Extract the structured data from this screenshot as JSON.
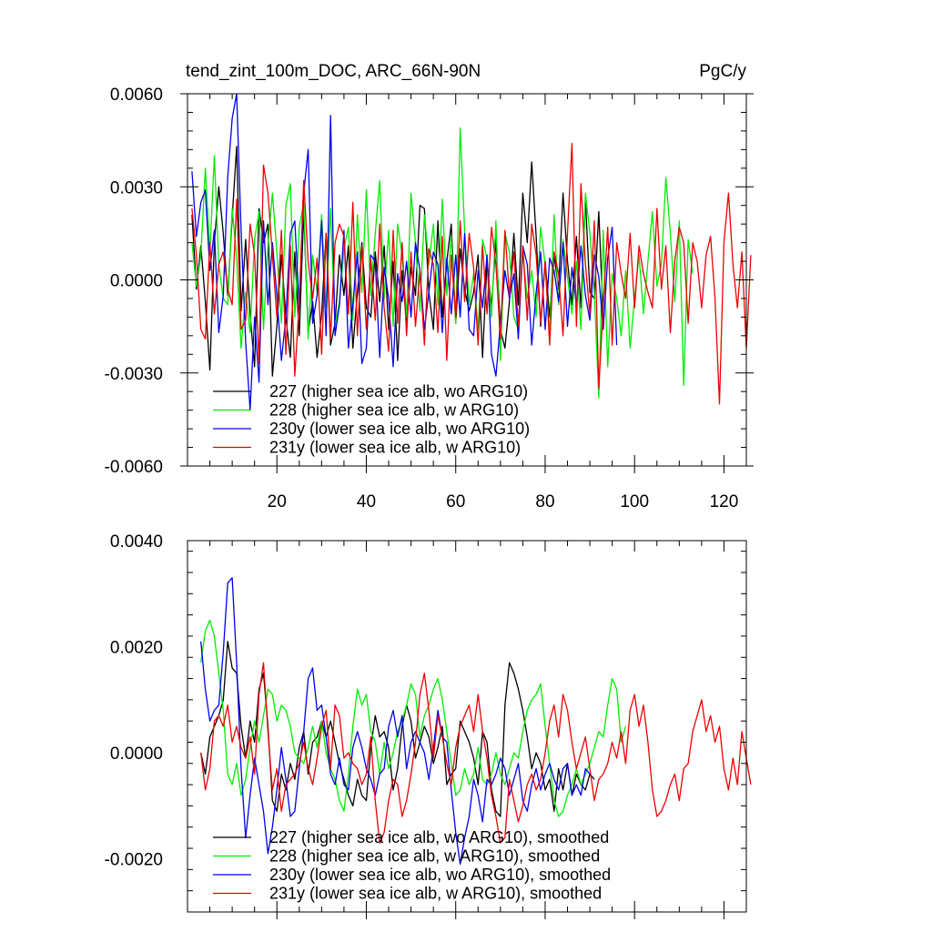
{
  "chart_data": [
    {
      "type": "line",
      "title": "tend_zint_100m_DOC, ARC_66N-90N",
      "units": "PgC/y",
      "xlabel": "",
      "ylabel": "",
      "xlim": [
        0,
        125
      ],
      "ylim": [
        -0.006,
        0.006
      ],
      "xticks": [
        20,
        40,
        60,
        80,
        100,
        120
      ],
      "yticks": [
        -0.006,
        -0.003,
        0.0,
        0.003,
        0.006
      ],
      "ytick_labels": [
        "-0.0060",
        "-0.0030",
        "0.0000",
        "0.0030",
        "0.0060"
      ],
      "grid": false,
      "legend_position": "bottom-left",
      "series": [
        {
          "name": "227 (higher sea ice alb, wo ARG10)",
          "color": "#000000",
          "x_start": 1,
          "values": [
            0.0021,
            -0.0003,
            0.0011,
            -0.0007,
            -0.0029,
            0.0012,
            0.003,
            0.0015,
            -0.0005,
            0.002,
            0.0043,
            -0.001,
            0.0013,
            -0.0011,
            -0.0028,
            0.0023,
            0.0012,
            0.0018,
            -0.0031,
            -0.0015,
            0.0008,
            -0.0012,
            -0.0025,
            0.0009,
            -0.0018,
            0.0022,
            -0.0017,
            -0.0007,
            -0.0025,
            -0.0011,
            0.0015,
            -0.0021,
            -0.0014,
            0.0008,
            -0.0005,
            0.0011,
            -0.0022,
            -0.0004,
            0.0012,
            -0.0009,
            -0.0012,
            0.0009,
            -0.0007,
            0.0011,
            -0.0016,
            0.0006,
            -0.0026,
            0.0003,
            -0.0014,
            0.0004,
            -0.0005,
            0.0024,
            0.0023,
            -0.0004,
            -0.0016,
            0.0019,
            -0.0012,
            0.0006,
            0.0018,
            -0.0014,
            0.001,
            -0.0003,
            -0.001,
            -0.0004,
            0.0008,
            -0.0025,
            0.0006,
            -0.0009,
            0.0013,
            -0.0016,
            -0.0022,
            -0.0007,
            0.0015,
            -0.0008,
            0.0028,
            0.0012,
            0.0038,
            0.0014,
            -0.0015,
            0.0006,
            -0.0012,
            0.0008,
            -0.0003,
            0.0028,
            0.0006,
            -0.0008,
            0.0014,
            -0.0009,
            0.0026,
            -0.0004,
            -0.0006,
            0.0022,
            -0.0013
          ]
        },
        {
          "name": "228 (higher sea ice alb, w ARG10)",
          "color": "#00ee00",
          "x_start": 1,
          "values": [
            0.0012,
            -0.0002,
            0.0008,
            0.0036,
            0.0009,
            0.004,
            0.0005,
            -0.0006,
            -0.0008,
            0.0023,
            0.0007,
            -0.0022,
            -0.0004,
            -0.0017,
            0.0013,
            0.0022,
            -0.0016,
            0.0011,
            0.0028,
            0.0009,
            -0.0014,
            0.0024,
            0.0031,
            -0.0012,
            0.0017,
            0.0025,
            -0.0019,
            0.0008,
            -0.0004,
            0.0021,
            -0.0009,
            0.0023,
            -0.0015,
            -0.0007,
            0.001,
            0.0017,
            -0.0013,
            0.0021,
            -0.0004,
            0.0029,
            -0.0005,
            0.0015,
            0.0032,
            -0.0006,
            0.0016,
            -0.0015,
            0.0018,
            0.0008,
            -0.0012,
            0.0028,
            0.0012,
            -0.001,
            0.0021,
            0.0005,
            0.0018,
            -0.0008,
            0.0026,
            -0.0005,
            0.0014,
            -0.0014,
            0.0049,
            0.0016,
            -0.0008,
            0.0002,
            -0.0016,
            0.0013,
            0.0007,
            -0.0012,
            0.0019,
            -0.0026,
            0.0015,
            0.0009,
            -0.0012,
            -0.0016,
            0.0009,
            -0.0006,
            0.0003,
            -0.0012,
            0.0017,
            0.0005,
            -0.0018,
            0.0021,
            -0.0008,
            0.0013,
            0.0001,
            -0.0011,
            0.0006,
            -0.0016,
            0.0028,
            0.0015,
            -0.0004,
            -0.0038,
            0.0016,
            -0.0028,
            0.0002,
            -0.0006,
            -0.0018,
            0.0003,
            -0.0022,
            -0.0006,
            0.0008,
            -0.0011,
            0.0006,
            0.0022,
            -0.0002,
            0.0005,
            0.0033,
            0.0015,
            -0.0007,
            0.0019,
            -0.0034,
            0.0013,
            0.0002
          ]
        },
        {
          "name": "230y (lower sea ice alb, wo ARG10)",
          "color": "#0000ee",
          "x_start": 1,
          "values": [
            0.0035,
            0.0014,
            0.0025,
            0.0029,
            0.0003,
            0.0016,
            -0.0017,
            -0.0005,
            0.0033,
            0.0052,
            0.006,
            0.0016,
            -0.002,
            -0.0042,
            -0.0012,
            -0.0033,
            0.0019,
            -0.0008,
            0.0012,
            -0.0005,
            -0.0026,
            -0.0012,
            0.0015,
            0.0019,
            -0.0009,
            0.0028,
            0.0042,
            -0.0014,
            -0.0005,
            0.0019,
            -0.0018,
            0.0053,
            -0.0018,
            -0.0008,
            0.0016,
            -0.0022,
            -0.0008,
            0.0009,
            -0.0027,
            -0.0022,
            0.0008,
            0.0006,
            -0.0025,
            0.0004,
            -0.0006,
            -0.0028,
            0.0002,
            -0.0007,
            0.0006,
            -0.0012,
            0.0012,
            0.0003,
            -0.0016,
            -0.0004,
            0.0009,
            0.0005,
            -0.0017,
            0.0007,
            -0.0011,
            0.0008,
            -0.0012,
            0.0015,
            -0.0016,
            -0.0018,
            0.0003,
            -0.0009,
            0.0008,
            -0.0024,
            -0.0031,
            -0.0014,
            0.0003,
            -0.0006,
            0.0002,
            -0.0019,
            0.0011,
            0.0005,
            -0.0021,
            -0.0004,
            0.0009,
            -0.0016,
            0.0007,
            0.0003,
            -0.0007,
            0.0012,
            -0.0015,
            0.0004,
            -0.0008,
            0.0011,
            -0.0005,
            -0.0013,
            0.0008,
            0.0001,
            -0.0016,
            0.0007,
            0.0017,
            -0.0021
          ]
        },
        {
          "name": "231y (lower sea ice alb, w ARG10)",
          "color": "#ee0000",
          "x_start": 1,
          "values": [
            0.0023,
            0.0008,
            -0.0016,
            -0.0019,
            0.0012,
            -0.0011,
            0.0005,
            0.0009,
            -0.0003,
            -0.0008,
            0.0026,
            -0.0016,
            -0.0013,
            0.0018,
            0.0008,
            -0.0027,
            0.0037,
            0.0028,
            0.0008,
            -0.0012,
            0.0016,
            -0.0024,
            0.0011,
            -0.0031,
            -0.0007,
            0.0032,
            0.0006,
            -0.0006,
            0.0007,
            -0.0024,
            0.0015,
            -0.0019,
            0.0012,
            0.0018,
            0.0014,
            -0.0011,
            0.0025,
            -0.0018,
            0.0011,
            -0.0016,
            0.0007,
            -0.0013,
            0.0018,
            -0.0009,
            -0.0023,
            0.0016,
            -0.0014,
            0.0012,
            -0.0018,
            0.0009,
            -0.0015,
            0.0003,
            -0.0021,
            0.001,
            0.0005,
            -0.0017,
            0.0014,
            -0.0026,
            0.0008,
            -0.0012,
            0.0019,
            -0.0007,
            0.0015,
            0.0004,
            -0.0021,
            0.0011,
            -0.0011,
            0.0017,
            0.0005,
            -0.0019,
            0.0016,
            -0.0005,
            0.0009,
            -0.0015,
            0.0011,
            -0.0013,
            0.0018,
            0.0008,
            -0.0014,
            0.0006,
            -0.0021,
            0.0009,
            0.0002,
            -0.0018,
            0.0015,
            0.0044,
            -0.0015,
            0.0031,
            0.0005,
            -0.0011,
            0.0019,
            -0.0035,
            -0.0008,
            0.0017,
            -0.0021,
            0.0012,
            0.0002,
            -0.0006,
            0.0015,
            -0.0009,
            0.0011,
            0.0002,
            -0.0004,
            -0.0009,
            0.0023,
            -0.0003,
            0.0011,
            -0.0017,
            0.0006,
            0.0017,
            0.0012,
            -0.0014,
            0.0012,
            0.0006,
            -0.0009,
            0.0008,
            0.0014,
            -0.0006,
            -0.004,
            0.0012,
            0.0028,
            0.0005,
            -0.0009,
            0.0009,
            -0.0022,
            0.0008
          ]
        }
      ]
    },
    {
      "type": "line",
      "title": "",
      "xlabel": "",
      "ylabel": "",
      "xlim": [
        0,
        125
      ],
      "ylim": [
        -0.003,
        0.004
      ],
      "xticks": [
        20,
        40,
        60,
        80,
        100,
        120
      ],
      "yticks": [
        -0.002,
        0.0,
        0.002,
        0.004
      ],
      "ytick_labels": [
        "-0.0020",
        "0.0000",
        "0.0020",
        "0.0040"
      ],
      "grid": false,
      "legend_position": "bottom-left",
      "series": [
        {
          "name": "227 (higher sea ice alb, wo ARG10), smoothed",
          "color": "#000000",
          "x_start": 3,
          "values": [
            0.0,
            -0.0004,
            0.0003,
            0.0005,
            0.0007,
            0.001,
            0.0021,
            0.0016,
            0.0015,
            0.0005,
            -0.0001,
            0.0006,
            0.0002,
            0.0012,
            0.0015,
            0.0005,
            -0.0009,
            -0.0011,
            -0.0004,
            -0.0007,
            -0.0002,
            -0.0005,
            0.0001,
            0.0004,
            -0.0004,
            0.0002,
            0.0003,
            0.0006,
            0.0003,
            0.0006,
            0.0002,
            -0.0002,
            -0.0005,
            -0.0008,
            -0.001,
            -0.0005,
            -0.0008,
            -0.0009,
            0.0001,
            0.0007,
            0.0003,
            0.0004,
            0.0001,
            -0.0007,
            -0.0003,
            0.0005,
            0.0009,
            0.0006,
            -0.0001,
            0.0002,
            0.0005,
            0.0003,
            -0.0002,
            0.0001,
            0.0005,
            -0.0006,
            -0.0004,
            -0.0003,
            0.0006,
            0.0004,
            0.0002,
            -0.0001,
            -0.0006,
            0.0004,
            0.0002,
            -0.0007,
            -0.0011,
            -0.0012,
            0.0009,
            0.0017,
            0.0015,
            0.0012,
            0.0008,
            0.0003,
            -0.0003,
            0.0,
            -0.0002,
            -0.0007,
            -0.0005,
            -0.0011,
            -0.0003,
            -0.0007,
            -0.0002,
            -0.0008,
            -0.0004,
            -0.0006,
            -0.0007,
            -0.0004,
            -0.0005
          ]
        },
        {
          "name": "228 (higher sea ice alb, w ARG10), smoothed",
          "color": "#00ee00",
          "x_start": 3,
          "values": [
            0.0017,
            0.0023,
            0.0025,
            0.0022,
            0.0015,
            0.0008,
            -0.0004,
            -0.0006,
            -0.0002,
            -0.0008,
            -0.0005,
            0.0001,
            0.0006,
            0.0002,
            0.0007,
            0.0012,
            0.0011,
            0.0006,
            0.0009,
            0.0008,
            0.0005,
            0.0,
            -0.0001,
            -0.0002,
            0.0001,
            0.0005,
            0.0001,
            0.0006,
            0.0,
            -0.0003,
            -0.0005,
            -0.0009,
            -0.0011,
            -0.0004,
            0.0005,
            0.0012,
            0.0009,
            0.0011,
            0.0004,
            0.0002,
            -0.0004,
            0.0002,
            -0.0003,
            0.0,
            0.0004,
            0.0006,
            0.0009,
            0.0013,
            0.0011,
            0.0003,
            0.0007,
            0.0009,
            0.0012,
            0.0014,
            0.001,
            0.0004,
            -0.0002,
            -0.0008,
            -0.0007,
            -0.0003,
            -0.0006,
            -0.0004,
            0.0001,
            -0.0005,
            -0.0006,
            -0.0004,
            0.0,
            -0.0004,
            -0.0006,
            -0.0003,
            0.0,
            -0.0001,
            0.0004,
            0.0008,
            0.001,
            0.0011,
            0.0013,
            0.0005,
            -0.0002,
            -0.0009,
            -0.0012,
            -0.0011,
            -0.0008,
            -0.0006,
            -0.0003,
            -0.0006,
            -0.0004,
            -0.0002,
            0.0001,
            0.0004,
            0.0003,
            0.0009,
            0.0014,
            0.0012,
            0.0002,
            0.0005
          ]
        },
        {
          "name": "230y (lower sea ice alb, wo ARG10), smoothed",
          "color": "#0000ee",
          "x_start": 3,
          "values": [
            0.0021,
            0.0012,
            0.0006,
            0.0008,
            0.0009,
            0.0019,
            0.0032,
            0.0033,
            0.0017,
            -0.0003,
            -0.0016,
            -0.0008,
            -0.0001,
            -0.0006,
            -0.0011,
            -0.0019,
            -0.0014,
            -0.0007,
            0.0001,
            -0.0005,
            -0.0012,
            -0.0011,
            -0.0003,
            0.0004,
            0.0014,
            0.0016,
            0.0008,
            0.0009,
            0.0003,
            -0.0004,
            -0.0006,
            -0.0001,
            -0.0006,
            -0.0007,
            0.0001,
            0.0004,
            0.0001,
            -0.0003,
            -0.0005,
            -0.0008,
            -0.0004,
            -0.0003,
            0.0005,
            0.0008,
            0.0003,
            0.0007,
            -0.0003,
            0.0002,
            0.0004,
            0.0002,
            0.0,
            -0.0005,
            0.0001,
            0.0008,
            0.0003,
            0.0002,
            -0.0007,
            -0.0015,
            -0.0021,
            -0.0016,
            -0.0012,
            -0.0005,
            -0.0008,
            -0.0013,
            -0.0005,
            -0.0006,
            -0.0004,
            -0.0001,
            -0.0003,
            -0.0008,
            -0.0005,
            -0.0002,
            -0.0009,
            -0.0011,
            -0.0006,
            -0.0003,
            -0.0007,
            -0.0004,
            -0.0002,
            -0.0005,
            -0.0007,
            -0.0003,
            -0.0002,
            -0.0008,
            -0.0006,
            -0.0008,
            -0.0003,
            -0.0004
          ]
        },
        {
          "name": "231y (lower sea ice alb, w ARG10), smoothed",
          "color": "#ee0000",
          "x_start": 3,
          "values": [
            0.0,
            -0.0007,
            -0.0003,
            0.0006,
            0.0007,
            0.0005,
            0.0009,
            0.0002,
            0.0005,
            0.0001,
            -0.0001,
            0.0003,
            -0.0004,
            0.0011,
            0.0017,
            0.0004,
            -0.0007,
            -0.0003,
            -0.0011,
            -0.0006,
            -0.0005,
            -0.0004,
            -0.0002,
            0.0002,
            -0.0003,
            -0.0006,
            -0.0001,
            0.0005,
            0.0008,
            -0.0003,
            0.0009,
            0.0007,
            -0.0001,
            0.0,
            -0.0002,
            -0.0003,
            -0.0006,
            -0.0004,
            0.0003,
            -0.0009,
            -0.0017,
            -0.0015,
            -0.0009,
            -0.0005,
            -0.0006,
            -0.0012,
            -0.0009,
            -0.0004,
            0.0002,
            0.0011,
            0.0015,
            0.0008,
            -0.0001,
            0.0007,
            0.0003,
            -0.0002,
            -0.0006,
            0.0001,
            0.0005,
            0.0007,
            0.0009,
            0.0004,
            0.0011,
            0.0004,
            -0.0001,
            -0.0008,
            -0.0012,
            -0.0017,
            -0.0016,
            -0.0005,
            -0.0009,
            -0.0013,
            -0.001,
            -0.0006,
            -0.0004,
            -0.0007,
            -0.0005,
            0.0,
            0.0006,
            0.0009,
            0.0003,
            0.0011,
            0.0008,
            0.0002,
            -0.0003,
            0.0,
            0.0003,
            -0.0003,
            -0.0009,
            -0.0005,
            -0.0004,
            -0.0002,
            0.0002,
            -0.0001,
            0.0004,
            -0.0002,
            0.0008,
            0.0011,
            0.0005,
            0.0009,
            0.0002,
            -0.0007,
            -0.0012,
            -0.0011,
            -0.0009,
            -0.0006,
            -0.0004,
            -0.0009,
            -0.0003,
            -0.0002,
            0.0004,
            0.0007,
            0.001,
            0.0004,
            0.0007,
            0.0002,
            0.0005,
            -0.0003,
            -0.0007,
            -0.0001,
            -0.0006,
            0.0004,
            -0.0001,
            -0.0006
          ]
        }
      ]
    }
  ]
}
